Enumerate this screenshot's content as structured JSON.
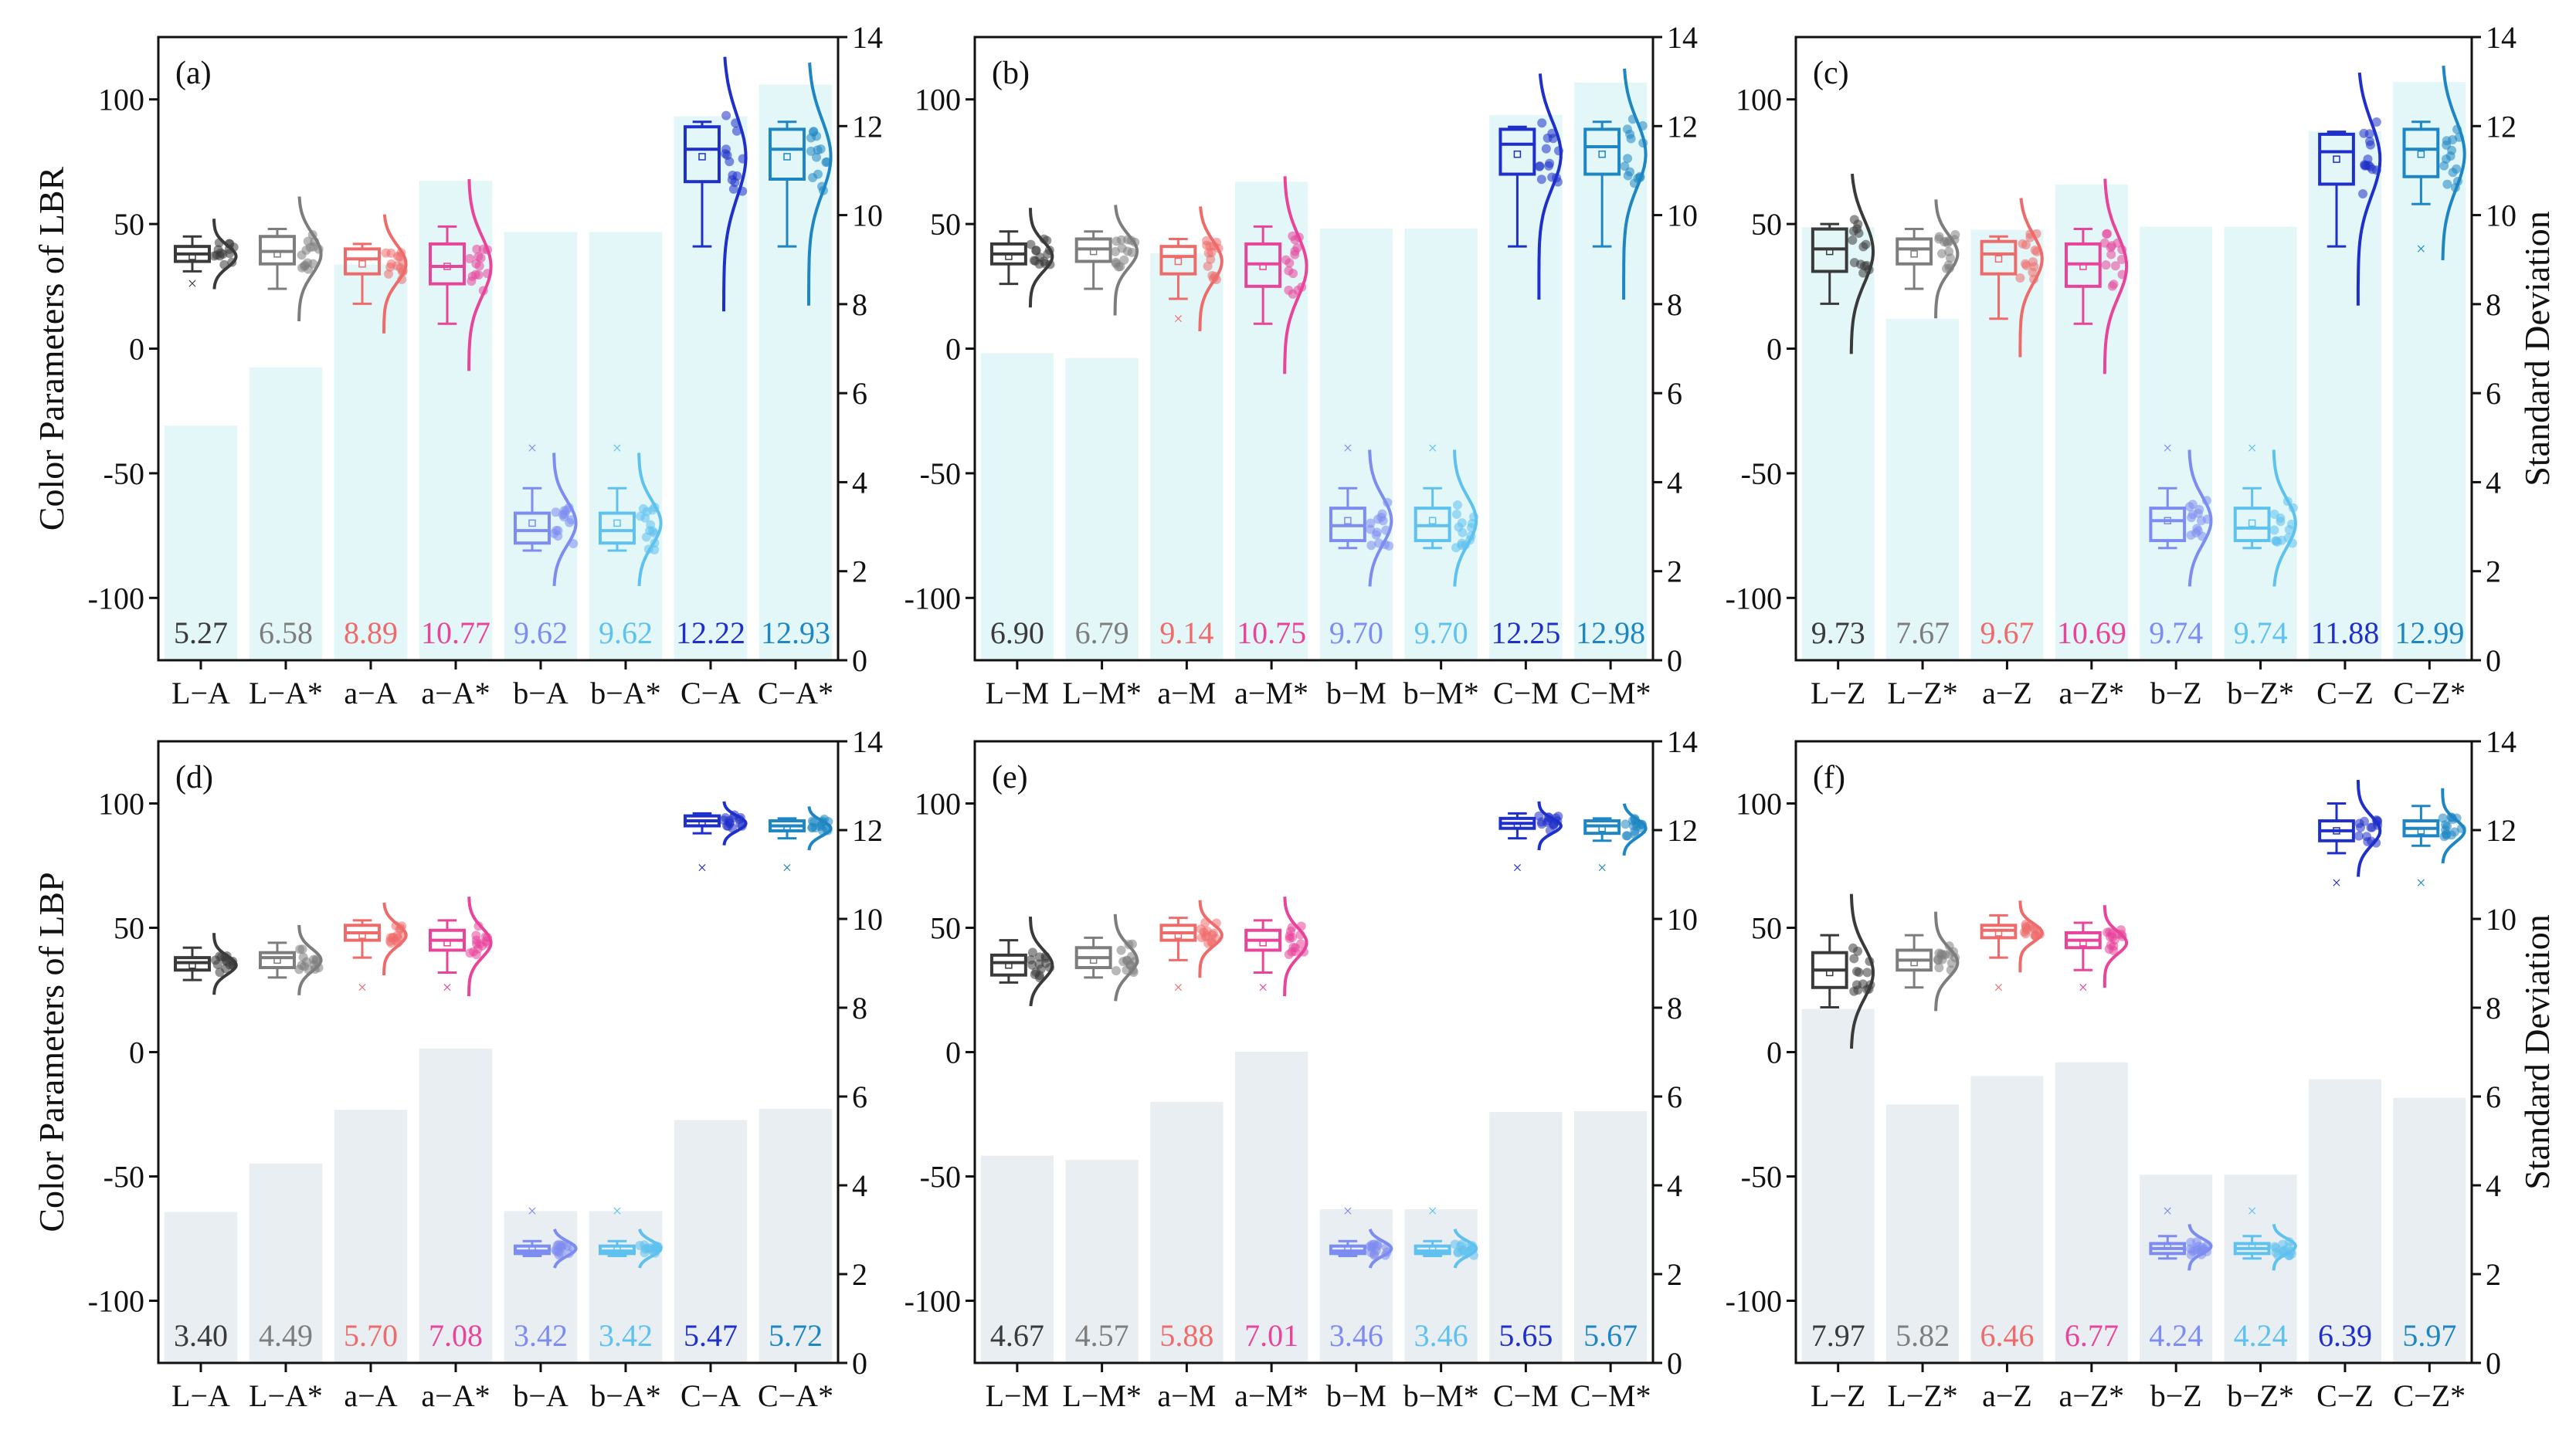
{
  "chart_data": {
    "type": "box",
    "y_left_label_top": "Color Parameters of LBR",
    "y_left_label_bottom": "Color Parameters of LBP",
    "y_right_label": "Standard Deviation",
    "left_ylim": [
      -125,
      125
    ],
    "left_ticks": [
      -100,
      -50,
      0,
      50,
      100
    ],
    "right_ylim": [
      0,
      14
    ],
    "right_ticks": [
      0,
      2,
      4,
      6,
      8,
      10,
      12,
      14
    ],
    "colors": [
      "#3a3a3a",
      "#7d7d7d",
      "#ee6b6b",
      "#e8449a",
      "#7d8cf0",
      "#5fc1ee",
      "#1f2fc9",
      "#1e86c3"
    ],
    "bar_color_top": "#e3f7f8",
    "bar_color_bottom": "#e8eef2",
    "panels": [
      {
        "label": "(a)",
        "categories": [
          "L−A",
          "L−A*",
          "a−A",
          "a−A*",
          "b−A",
          "b−A*",
          "C−A",
          "C−A*"
        ],
        "sd": [
          5.27,
          6.58,
          8.89,
          10.77,
          9.62,
          9.62,
          12.22,
          12.93
        ],
        "sd_labels": [
          "5.27",
          "6.58",
          "8.89",
          "10.77",
          "9.62",
          "9.62",
          "12.22",
          "12.93"
        ],
        "boxes": [
          {
            "median": 38,
            "q1": 35,
            "q3": 41,
            "wlo": 31,
            "whi": 45,
            "mean": 37,
            "outliers": [
              26
            ]
          },
          {
            "median": 39,
            "q1": 34,
            "q3": 45,
            "wlo": 24,
            "whi": 48,
            "mean": 38,
            "outliers": []
          },
          {
            "median": 36,
            "q1": 30,
            "q3": 40,
            "wlo": 18,
            "whi": 42,
            "mean": 34,
            "outliers": []
          },
          {
            "median": 33,
            "q1": 26,
            "q3": 42,
            "wlo": 10,
            "whi": 49,
            "mean": 33,
            "outliers": []
          },
          {
            "median": -73,
            "q1": -78,
            "q3": -66,
            "wlo": -81,
            "whi": -56,
            "mean": -70,
            "outliers": [
              -40
            ]
          },
          {
            "median": -73,
            "q1": -78,
            "q3": -66,
            "wlo": -81,
            "whi": -56,
            "mean": -70,
            "outliers": [
              -40
            ]
          },
          {
            "median": 80,
            "q1": 67,
            "q3": 89,
            "wlo": 41,
            "whi": 91,
            "mean": 77,
            "outliers": []
          },
          {
            "median": 80,
            "q1": 68,
            "q3": 88,
            "wlo": 41,
            "whi": 91,
            "mean": 77,
            "outliers": []
          }
        ]
      },
      {
        "label": "(b)",
        "categories": [
          "L−M",
          "L−M*",
          "a−M",
          "a−M*",
          "b−M",
          "b−M*",
          "C−M",
          "C−M*"
        ],
        "sd": [
          6.9,
          6.79,
          9.14,
          10.75,
          9.7,
          9.7,
          12.25,
          12.98
        ],
        "sd_labels": [
          "6.90",
          "6.79",
          "9.14",
          "10.75",
          "9.70",
          "9.70",
          "12.25",
          "12.98"
        ],
        "boxes": [
          {
            "median": 38,
            "q1": 34,
            "q3": 42,
            "wlo": 26,
            "whi": 47,
            "mean": 37,
            "outliers": []
          },
          {
            "median": 40,
            "q1": 35,
            "q3": 44,
            "wlo": 24,
            "whi": 47,
            "mean": 39,
            "outliers": []
          },
          {
            "median": 37,
            "q1": 30,
            "q3": 41,
            "wlo": 20,
            "whi": 44,
            "mean": 35,
            "outliers": [
              12
            ]
          },
          {
            "median": 34,
            "q1": 25,
            "q3": 42,
            "wlo": 10,
            "whi": 49,
            "mean": 33,
            "outliers": []
          },
          {
            "median": -71,
            "q1": -77,
            "q3": -64,
            "wlo": -80,
            "whi": -56,
            "mean": -69,
            "outliers": [
              -40
            ]
          },
          {
            "median": -71,
            "q1": -77,
            "q3": -64,
            "wlo": -80,
            "whi": -56,
            "mean": -69,
            "outliers": [
              -40
            ]
          },
          {
            "median": 82,
            "q1": 70,
            "q3": 88,
            "wlo": 41,
            "whi": 89,
            "mean": 78,
            "outliers": []
          },
          {
            "median": 81,
            "q1": 70,
            "q3": 88,
            "wlo": 41,
            "whi": 91,
            "mean": 78,
            "outliers": []
          }
        ]
      },
      {
        "label": "(c)",
        "categories": [
          "L−Z",
          "L−Z*",
          "a−Z",
          "a−Z*",
          "b−Z",
          "b−Z*",
          "C−Z",
          "C−Z*"
        ],
        "sd": [
          9.73,
          7.67,
          9.67,
          10.69,
          9.74,
          9.74,
          11.88,
          12.99
        ],
        "sd_labels": [
          "9.73",
          "7.67",
          "9.67",
          "10.69",
          "9.74",
          "9.74",
          "11.88",
          "12.99"
        ],
        "boxes": [
          {
            "median": 40,
            "q1": 31,
            "q3": 48,
            "wlo": 18,
            "whi": 50,
            "mean": 39,
            "outliers": []
          },
          {
            "median": 40,
            "q1": 34,
            "q3": 44,
            "wlo": 24,
            "whi": 48,
            "mean": 38,
            "outliers": []
          },
          {
            "median": 38,
            "q1": 30,
            "q3": 43,
            "wlo": 12,
            "whi": 45,
            "mean": 36,
            "outliers": []
          },
          {
            "median": 34,
            "q1": 25,
            "q3": 42,
            "wlo": 10,
            "whi": 48,
            "mean": 33,
            "outliers": []
          },
          {
            "median": -69,
            "q1": -77,
            "q3": -64,
            "wlo": -80,
            "whi": -56,
            "mean": -69,
            "outliers": [
              -40
            ]
          },
          {
            "median": -72,
            "q1": -77,
            "q3": -64,
            "wlo": -80,
            "whi": -56,
            "mean": -70,
            "outliers": [
              -40
            ]
          },
          {
            "median": 79,
            "q1": 66,
            "q3": 86,
            "wlo": 41,
            "whi": 87,
            "mean": 76,
            "outliers": []
          },
          {
            "median": 80,
            "q1": 69,
            "q3": 88,
            "wlo": 58,
            "whi": 91,
            "mean": 78,
            "outliers": [
              40
            ]
          }
        ]
      },
      {
        "label": "(d)",
        "categories": [
          "L−A",
          "L−A*",
          "a−A",
          "a−A*",
          "b−A",
          "b−A*",
          "C−A",
          "C−A*"
        ],
        "sd": [
          3.4,
          4.49,
          5.7,
          7.08,
          3.42,
          3.42,
          5.47,
          5.72
        ],
        "sd_labels": [
          "3.40",
          "4.49",
          "5.70",
          "7.08",
          "3.42",
          "3.42",
          "5.47",
          "5.72"
        ],
        "boxes": [
          {
            "median": 36,
            "q1": 33,
            "q3": 38,
            "wlo": 29,
            "whi": 42,
            "mean": 35,
            "outliers": []
          },
          {
            "median": 38,
            "q1": 34,
            "q3": 40,
            "wlo": 30,
            "whi": 44,
            "mean": 37,
            "outliers": []
          },
          {
            "median": 48,
            "q1": 45,
            "q3": 51,
            "wlo": 38,
            "whi": 53,
            "mean": 47,
            "outliers": [
              26
            ]
          },
          {
            "median": 45,
            "q1": 41,
            "q3": 49,
            "wlo": 32,
            "whi": 53,
            "mean": 44,
            "outliers": [
              26
            ]
          },
          {
            "median": -80,
            "q1": -81,
            "q3": -78,
            "wlo": -82,
            "whi": -76,
            "mean": -79,
            "outliers": [
              -64
            ]
          },
          {
            "median": -80,
            "q1": -81,
            "q3": -78,
            "wlo": -82,
            "whi": -76,
            "mean": -79,
            "outliers": [
              -64
            ]
          },
          {
            "median": 93,
            "q1": 91,
            "q3": 95,
            "wlo": 88,
            "whi": 96,
            "mean": 92,
            "outliers": [
              74
            ]
          },
          {
            "median": 91,
            "q1": 89,
            "q3": 93,
            "wlo": 86,
            "whi": 94,
            "mean": 90,
            "outliers": [
              74
            ]
          }
        ]
      },
      {
        "label": "(e)",
        "categories": [
          "L−M",
          "L−M*",
          "a−M",
          "a−M*",
          "b−M",
          "b−M*",
          "C−M",
          "C−M*"
        ],
        "sd": [
          4.67,
          4.57,
          5.88,
          7.01,
          3.46,
          3.46,
          5.65,
          5.67
        ],
        "sd_labels": [
          "4.67",
          "4.57",
          "5.88",
          "7.01",
          "3.46",
          "3.46",
          "5.65",
          "5.67"
        ],
        "boxes": [
          {
            "median": 36,
            "q1": 31,
            "q3": 39,
            "wlo": 28,
            "whi": 45,
            "mean": 35,
            "outliers": []
          },
          {
            "median": 38,
            "q1": 34,
            "q3": 42,
            "wlo": 30,
            "whi": 46,
            "mean": 37,
            "outliers": []
          },
          {
            "median": 48,
            "q1": 45,
            "q3": 51,
            "wlo": 37,
            "whi": 54,
            "mean": 47,
            "outliers": [
              26
            ]
          },
          {
            "median": 45,
            "q1": 41,
            "q3": 49,
            "wlo": 32,
            "whi": 53,
            "mean": 44,
            "outliers": [
              26
            ]
          },
          {
            "median": -80,
            "q1": -81,
            "q3": -78,
            "wlo": -82,
            "whi": -76,
            "mean": -79,
            "outliers": [
              -64
            ]
          },
          {
            "median": -80,
            "q1": -81,
            "q3": -78,
            "wlo": -82,
            "whi": -76,
            "mean": -79,
            "outliers": [
              -64
            ]
          },
          {
            "median": 92,
            "q1": 90,
            "q3": 94,
            "wlo": 86,
            "whi": 96,
            "mean": 91,
            "outliers": [
              74
            ]
          },
          {
            "median": 91,
            "q1": 88,
            "q3": 93,
            "wlo": 85,
            "whi": 94,
            "mean": 90,
            "outliers": [
              74
            ]
          }
        ]
      },
      {
        "label": "(f)",
        "categories": [
          "L−Z",
          "L−Z*",
          "a−Z",
          "a−Z*",
          "b−Z",
          "b−Z*",
          "C−Z",
          "C−Z*"
        ],
        "sd": [
          7.97,
          5.82,
          6.46,
          6.77,
          4.24,
          4.24,
          6.39,
          5.97
        ],
        "sd_labels": [
          "7.97",
          "5.82",
          "6.46",
          "6.77",
          "4.24",
          "4.24",
          "6.39",
          "5.97"
        ],
        "boxes": [
          {
            "median": 33,
            "q1": 26,
            "q3": 40,
            "wlo": 18,
            "whi": 47,
            "mean": 32,
            "outliers": []
          },
          {
            "median": 37,
            "q1": 33,
            "q3": 41,
            "wlo": 26,
            "whi": 47,
            "mean": 36,
            "outliers": []
          },
          {
            "median": 49,
            "q1": 46,
            "q3": 51,
            "wlo": 38,
            "whi": 55,
            "mean": 48,
            "outliers": [
              26
            ]
          },
          {
            "median": 45,
            "q1": 42,
            "q3": 48,
            "wlo": 33,
            "whi": 52,
            "mean": 44,
            "outliers": [
              26
            ]
          },
          {
            "median": -79,
            "q1": -81,
            "q3": -77,
            "wlo": -83,
            "whi": -74,
            "mean": -78,
            "outliers": [
              -64
            ]
          },
          {
            "median": -79,
            "q1": -81,
            "q3": -77,
            "wlo": -83,
            "whi": -74,
            "mean": -78,
            "outliers": [
              -64
            ]
          },
          {
            "median": 89,
            "q1": 85,
            "q3": 93,
            "wlo": 80,
            "whi": 100,
            "mean": 89,
            "outliers": [
              68
            ]
          },
          {
            "median": 90,
            "q1": 87,
            "q3": 93,
            "wlo": 83,
            "whi": 99,
            "mean": 89,
            "outliers": [
              68
            ]
          }
        ]
      }
    ]
  }
}
